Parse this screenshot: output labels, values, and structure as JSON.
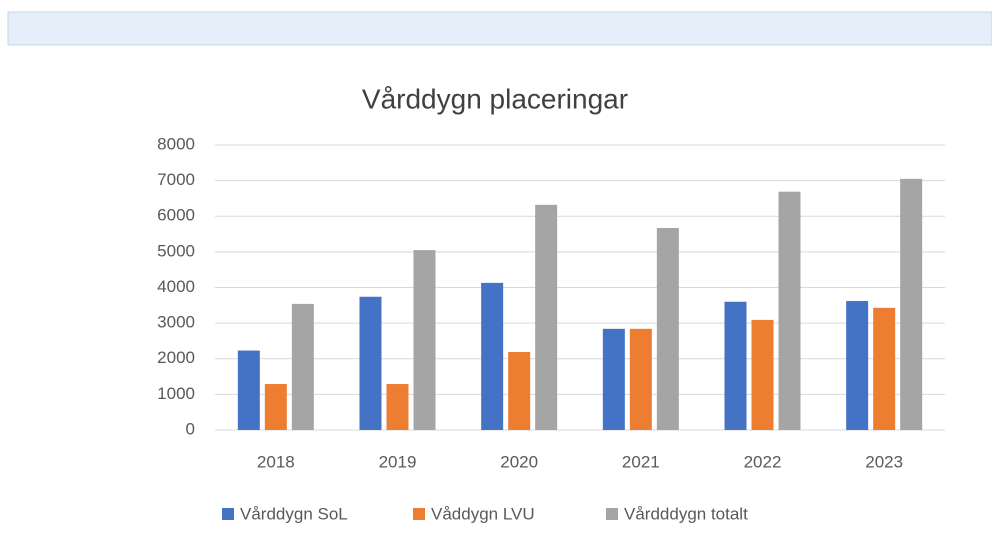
{
  "chart_data": {
    "type": "bar",
    "title": "Vårddygn placeringar",
    "categories": [
      "2018",
      "2019",
      "2020",
      "2021",
      "2022",
      "2023"
    ],
    "series": [
      {
        "name": "Vårddygn SoL",
        "color": "#4472c4",
        "values": [
          2230,
          3740,
          4130,
          2840,
          3600,
          3620
        ]
      },
      {
        "name": "Våddygn LVU",
        "color": "#ed7d31",
        "values": [
          1290,
          1290,
          2190,
          2840,
          3090,
          3430
        ]
      },
      {
        "name": "Vårdddygn totalt",
        "color": "#a5a5a5",
        "values": [
          3540,
          5050,
          6320,
          5670,
          6690,
          7050
        ]
      }
    ],
    "ylim": [
      0,
      8000
    ],
    "yticks": [
      0,
      1000,
      2000,
      3000,
      4000,
      5000,
      6000,
      7000,
      8000
    ],
    "grid": true,
    "legend": "bottom"
  }
}
